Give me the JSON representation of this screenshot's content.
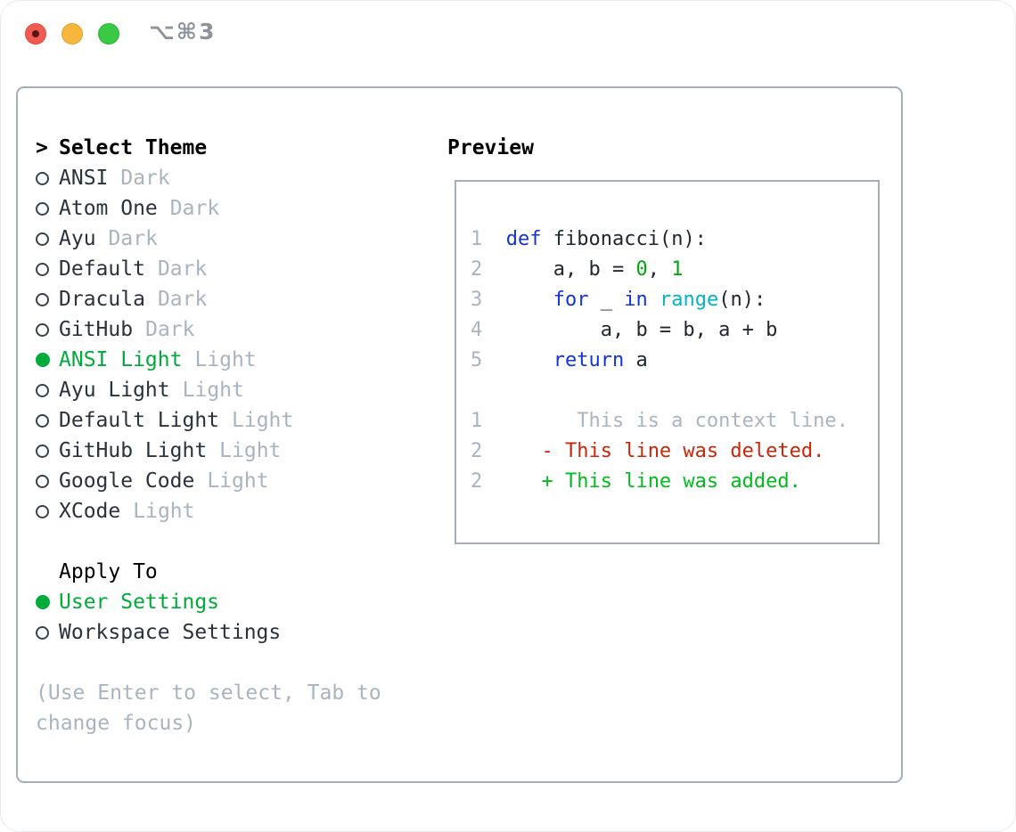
{
  "window": {
    "title": "⌥⌘3",
    "traffic_lights": [
      "close",
      "minimize",
      "zoom"
    ]
  },
  "colors": {
    "accent_green": "#00ab3a",
    "keyword_blue": "#1233e0",
    "builtin_cyan": "#00b3c8",
    "number_green": "#00a80b",
    "add_green": "#00bd1c",
    "del_red": "#cd2508",
    "muted": "#a9b4c0",
    "border": "#a5adb7",
    "tl_red": "#f15c52",
    "tl_yellow": "#f6b73c",
    "tl_green": "#3ac944"
  },
  "theme_panel": {
    "cursor": ">",
    "header": "Select Theme",
    "items": [
      {
        "name": "ANSI",
        "tag": "Dark",
        "selected": false
      },
      {
        "name": "Atom One",
        "tag": "Dark",
        "selected": false
      },
      {
        "name": "Ayu",
        "tag": "Dark",
        "selected": false
      },
      {
        "name": "Default",
        "tag": "Dark",
        "selected": false
      },
      {
        "name": "Dracula",
        "tag": "Dark",
        "selected": false
      },
      {
        "name": "GitHub",
        "tag": "Dark",
        "selected": false
      },
      {
        "name": "ANSI Light",
        "tag": "Light",
        "selected": true
      },
      {
        "name": "Ayu Light",
        "tag": "Light",
        "selected": false
      },
      {
        "name": "Default Light",
        "tag": "Light",
        "selected": false
      },
      {
        "name": "GitHub Light",
        "tag": "Light",
        "selected": false
      },
      {
        "name": "Google Code",
        "tag": "Light",
        "selected": false
      },
      {
        "name": "XCode",
        "tag": "Light",
        "selected": false
      }
    ],
    "apply_to": {
      "header": "Apply To",
      "options": [
        {
          "label": "User Settings",
          "selected": true
        },
        {
          "label": "Workspace Settings",
          "selected": false
        }
      ]
    },
    "help_text": "(Use Enter to select, Tab to change focus)"
  },
  "preview_panel": {
    "header": "Preview",
    "lines": [
      {
        "num": "1",
        "tokens": [
          {
            "text": "def",
            "style": "keyword"
          },
          {
            "text": " fibonacci(n):",
            "style": "plain"
          }
        ]
      },
      {
        "num": "2",
        "tokens": [
          {
            "text": "    a, b = ",
            "style": "plain"
          },
          {
            "text": "0",
            "style": "number"
          },
          {
            "text": ", ",
            "style": "plain"
          },
          {
            "text": "1",
            "style": "number"
          }
        ]
      },
      {
        "num": "3",
        "tokens": [
          {
            "text": "    ",
            "style": "plain"
          },
          {
            "text": "for",
            "style": "keyword"
          },
          {
            "text": " _ ",
            "style": "plain"
          },
          {
            "text": "in",
            "style": "keyword"
          },
          {
            "text": " ",
            "style": "plain"
          },
          {
            "text": "range",
            "style": "builtin"
          },
          {
            "text": "(n):",
            "style": "plain"
          }
        ]
      },
      {
        "num": "4",
        "tokens": [
          {
            "text": "        a, b = b, a + b",
            "style": "plain"
          }
        ]
      },
      {
        "num": "5",
        "tokens": [
          {
            "text": "    ",
            "style": "plain"
          },
          {
            "text": "return",
            "style": "keyword"
          },
          {
            "text": " a",
            "style": "plain"
          }
        ]
      },
      {
        "num": "",
        "tokens": []
      },
      {
        "num": "1",
        "tokens": [
          {
            "text": "      This is a context line.",
            "style": "context"
          }
        ]
      },
      {
        "num": "2",
        "tokens": [
          {
            "text": "   - This line was deleted.",
            "style": "deleted"
          }
        ]
      },
      {
        "num": "2",
        "tokens": [
          {
            "text": "   + This line was added.",
            "style": "added"
          }
        ]
      }
    ]
  }
}
